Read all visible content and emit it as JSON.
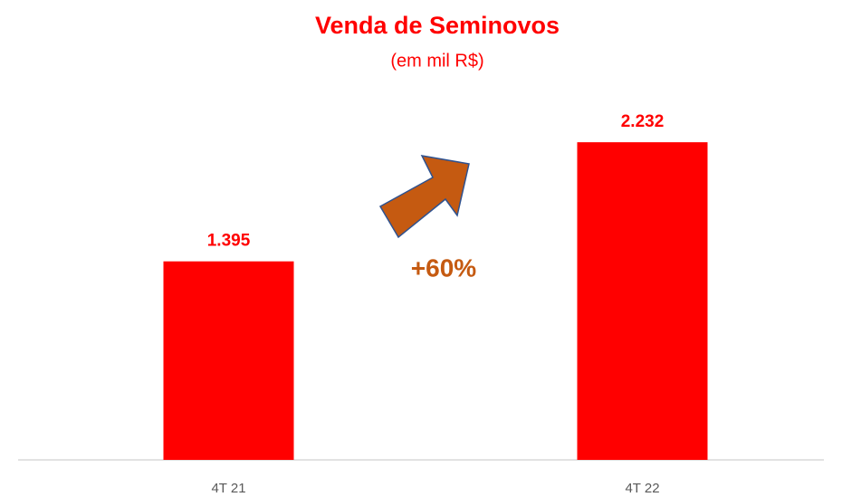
{
  "chart_data": {
    "type": "bar",
    "title": "Venda de Seminovos",
    "subtitle": "(em mil R$)",
    "categories": [
      "4T 21",
      "4T 22"
    ],
    "values": [
      1395,
      2232
    ],
    "value_labels": [
      "1.395",
      "2.232"
    ],
    "color": "#ff0000",
    "ylim": [
      0,
      2500
    ],
    "annotation": "+60%"
  }
}
